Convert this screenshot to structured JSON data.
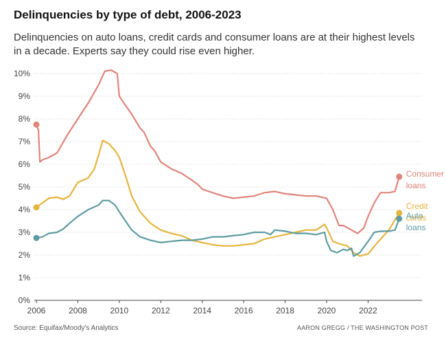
{
  "title": "Delinquencies by type of debt, 2006-2023",
  "subtitle": "Delinquencies on auto loans, credit cards and consumer loans are at their highest levels in a decade. Experts say they could rise even higher.",
  "source": "Source: Equifax/Moody's Analytics",
  "credit": "AARON GREGG / THE WASHINGTON POST",
  "chart_data": {
    "type": "line",
    "title": "Delinquencies by type of debt, 2006-2023",
    "xlabel": "",
    "ylabel": "",
    "xlim": [
      2005.9,
      2024.6
    ],
    "ylim": [
      0,
      10
    ],
    "x_ticks": [
      2006,
      2008,
      2010,
      2012,
      2014,
      2016,
      2018,
      2020,
      2022
    ],
    "x_tick_labels": [
      "2006",
      "2008",
      "2010",
      "2012",
      "2014",
      "2016",
      "2018",
      "2020",
      "2022"
    ],
    "y_ticks": [
      0,
      1,
      2,
      3,
      4,
      5,
      6,
      7,
      8,
      9,
      10
    ],
    "y_tick_labels": [
      "0%",
      "1%",
      "2%",
      "3%",
      "4%",
      "5%",
      "6%",
      "7%",
      "8%",
      "9%",
      "10%"
    ],
    "grid": true,
    "legend": "end-of-line labels",
    "series": [
      {
        "name": "Consumer loans",
        "label_lines": [
          "Consumer",
          "loans"
        ],
        "color": "#e0837a",
        "x": [
          2006.0,
          2006.1,
          2006.17,
          2006.3,
          2006.6,
          2007.0,
          2007.5,
          2008.0,
          2008.5,
          2009.0,
          2009.3,
          2009.6,
          2009.9,
          2010.0,
          2010.3,
          2010.6,
          2011.0,
          2011.2,
          2011.5,
          2011.7,
          2012.0,
          2012.5,
          2013.0,
          2013.5,
          2013.8,
          2014.0,
          2014.5,
          2015.0,
          2015.5,
          2016.0,
          2016.5,
          2017.0,
          2017.5,
          2018.0,
          2018.5,
          2019.0,
          2019.5,
          2020.0,
          2020.3,
          2020.6,
          2020.8,
          2021.0,
          2021.2,
          2021.5,
          2021.8,
          2022.0,
          2022.3,
          2022.6,
          2023.0,
          2023.3,
          2023.5
        ],
        "y": [
          7.75,
          7.5,
          6.1,
          6.2,
          6.3,
          6.5,
          7.3,
          8.0,
          8.7,
          9.5,
          10.1,
          10.15,
          10.0,
          9.0,
          8.6,
          8.2,
          7.6,
          7.4,
          6.8,
          6.6,
          6.1,
          5.8,
          5.6,
          5.3,
          5.1,
          4.9,
          4.75,
          4.6,
          4.5,
          4.55,
          4.6,
          4.75,
          4.8,
          4.7,
          4.65,
          4.6,
          4.6,
          4.5,
          4.0,
          3.3,
          3.3,
          3.2,
          3.1,
          2.95,
          3.2,
          3.7,
          4.3,
          4.75,
          4.75,
          4.8,
          5.45
        ]
      },
      {
        "name": "Credit cards",
        "label_lines": [
          "Credit",
          "cards"
        ],
        "color": "#e5b43c",
        "x": [
          2006.0,
          2006.3,
          2006.6,
          2007.0,
          2007.3,
          2007.6,
          2008.0,
          2008.5,
          2008.8,
          2009.0,
          2009.2,
          2009.5,
          2009.8,
          2010.0,
          2010.3,
          2010.6,
          2011.0,
          2011.5,
          2012.0,
          2012.5,
          2013.0,
          2013.5,
          2014.0,
          2014.5,
          2015.0,
          2015.5,
          2016.0,
          2016.5,
          2017.0,
          2017.5,
          2018.0,
          2018.5,
          2019.0,
          2019.5,
          2019.9,
          2020.0,
          2020.3,
          2020.6,
          2021.0,
          2021.3,
          2021.6,
          2022.0,
          2022.5,
          2023.0,
          2023.5
        ],
        "y": [
          4.1,
          4.3,
          4.5,
          4.55,
          4.45,
          4.6,
          5.2,
          5.4,
          5.8,
          6.4,
          7.05,
          6.9,
          6.6,
          6.3,
          5.5,
          4.6,
          3.9,
          3.4,
          3.1,
          2.95,
          2.85,
          2.65,
          2.55,
          2.45,
          2.4,
          2.4,
          2.45,
          2.5,
          2.7,
          2.8,
          2.9,
          3.0,
          3.1,
          3.1,
          3.35,
          3.2,
          2.6,
          2.5,
          2.4,
          2.1,
          1.95,
          2.05,
          2.6,
          3.1,
          3.85
        ]
      },
      {
        "name": "Auto loans",
        "label_lines": [
          "Auto",
          "loans"
        ],
        "color": "#5c9ba2",
        "x": [
          2006.0,
          2006.3,
          2006.6,
          2007.0,
          2007.3,
          2007.6,
          2008.0,
          2008.5,
          2009.0,
          2009.2,
          2009.5,
          2009.8,
          2010.0,
          2010.3,
          2010.6,
          2011.0,
          2011.5,
          2012.0,
          2012.5,
          2013.0,
          2013.5,
          2014.0,
          2014.5,
          2015.0,
          2015.5,
          2016.0,
          2016.5,
          2017.0,
          2017.3,
          2017.5,
          2018.0,
          2018.5,
          2019.0,
          2019.5,
          2019.9,
          2020.0,
          2020.2,
          2020.5,
          2020.8,
          2021.0,
          2021.2,
          2021.3,
          2021.6,
          2022.0,
          2022.3,
          2022.6,
          2023.0,
          2023.3,
          2023.5
        ],
        "y": [
          2.75,
          2.8,
          2.95,
          3.0,
          3.15,
          3.4,
          3.7,
          4.0,
          4.2,
          4.4,
          4.4,
          4.2,
          3.9,
          3.5,
          3.1,
          2.8,
          2.65,
          2.55,
          2.6,
          2.65,
          2.65,
          2.7,
          2.8,
          2.8,
          2.85,
          2.9,
          3.0,
          3.0,
          2.9,
          3.1,
          3.05,
          2.95,
          2.95,
          2.9,
          3.0,
          2.6,
          2.2,
          2.1,
          2.25,
          2.2,
          2.3,
          1.95,
          2.1,
          2.6,
          3.0,
          3.05,
          3.05,
          3.1,
          3.6
        ]
      }
    ]
  }
}
